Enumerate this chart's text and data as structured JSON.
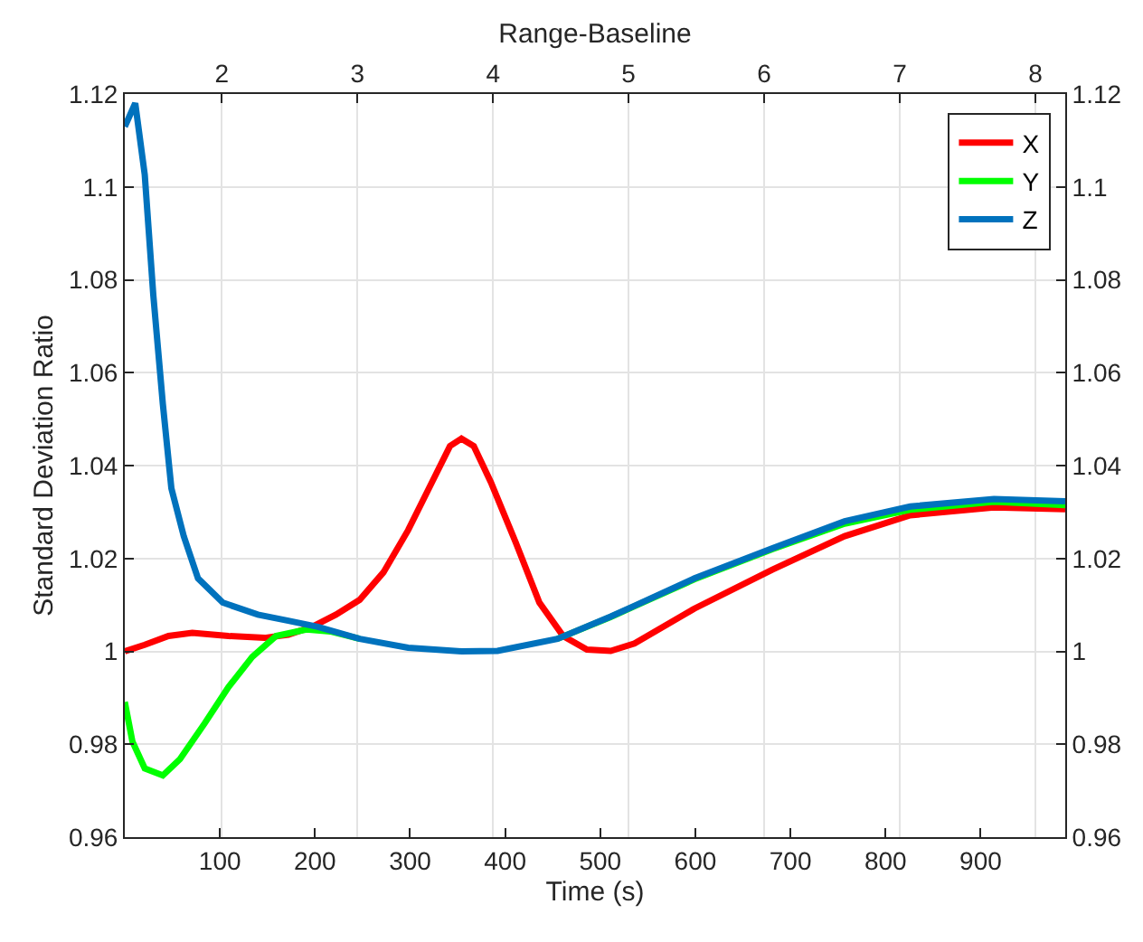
{
  "chart_data": {
    "type": "line",
    "xlabel": "Time (s)",
    "ylabel": "Standard Deviation Ratio",
    "x2label": "Range-Baseline",
    "xlim": [
      0,
      989
    ],
    "xticks": [
      100,
      200,
      300,
      400,
      500,
      600,
      700,
      800,
      900
    ],
    "x2lim": [
      1.285,
      8.22
    ],
    "x2ticks": [
      2,
      3,
      4,
      5,
      6,
      7,
      8
    ],
    "ylim": [
      0.96,
      1.12
    ],
    "yticks": [
      0.96,
      0.98,
      1,
      1.02,
      1.04,
      1.06,
      1.08,
      1.1,
      1.12
    ],
    "y2lim": [
      0.96,
      1.12
    ],
    "y2ticks": [
      0.96,
      0.98,
      1,
      1.02,
      1.04,
      1.06,
      1.08,
      1.1,
      1.12
    ],
    "grid": true,
    "legend": "top right",
    "marker": "none",
    "line_style": "solid",
    "series": [
      {
        "name": "X",
        "color": "#ff0000",
        "x": [
          0,
          21,
          46,
          71,
          109,
          147,
          172,
          197,
          222,
          247,
          272,
          298,
          323,
          342,
          354,
          367,
          385,
          411,
          436,
          461,
          486,
          511,
          536,
          599,
          681,
          757,
          826,
          914,
          989
        ],
        "values": [
          1.0,
          1.0014,
          1.0033,
          1.004,
          1.0033,
          1.0029,
          1.0036,
          1.0053,
          1.0079,
          1.0111,
          1.017,
          1.0261,
          1.0364,
          1.0442,
          1.0458,
          1.0442,
          1.0364,
          1.0235,
          1.0105,
          1.0033,
          1.0004,
          1.0001,
          1.0017,
          1.0092,
          1.0176,
          1.0248,
          1.0293,
          1.031,
          1.0306
        ]
      },
      {
        "name": "Y",
        "color": "#00ff00",
        "x": [
          0,
          8,
          21,
          40,
          58,
          84,
          109,
          134,
          159,
          191,
          216,
          247,
          298,
          354,
          392,
          455,
          511,
          536,
          599,
          681,
          757,
          826,
          914,
          989
        ],
        "values": [
          0.9891,
          0.9806,
          0.9748,
          0.9733,
          0.9768,
          0.9845,
          0.9923,
          0.9988,
          1.0033,
          1.0047,
          1.0043,
          1.0027,
          null,
          null,
          null,
          1.0027,
          1.0074,
          1.0097,
          1.0155,
          1.022,
          1.0275,
          1.0305,
          1.0322,
          1.0315
        ]
      },
      {
        "name": "Z",
        "color": "#0072bd",
        "x": [
          0,
          11,
          21,
          30,
          40,
          49,
          62,
          77,
          103,
          140,
          172,
          203,
          247,
          298,
          354,
          392,
          455,
          511,
          536,
          599,
          681,
          757,
          826,
          914,
          989
        ],
        "values": [
          1.113,
          1.118,
          1.1026,
          1.0767,
          1.0533,
          1.0351,
          1.0248,
          1.0157,
          1.0105,
          1.0079,
          1.0066,
          1.0053,
          1.0027,
          1.0008,
          1.0,
          1.0001,
          1.0027,
          1.0075,
          1.0098,
          1.0157,
          1.0222,
          1.028,
          1.0312,
          1.0328,
          1.0323
        ]
      }
    ]
  }
}
